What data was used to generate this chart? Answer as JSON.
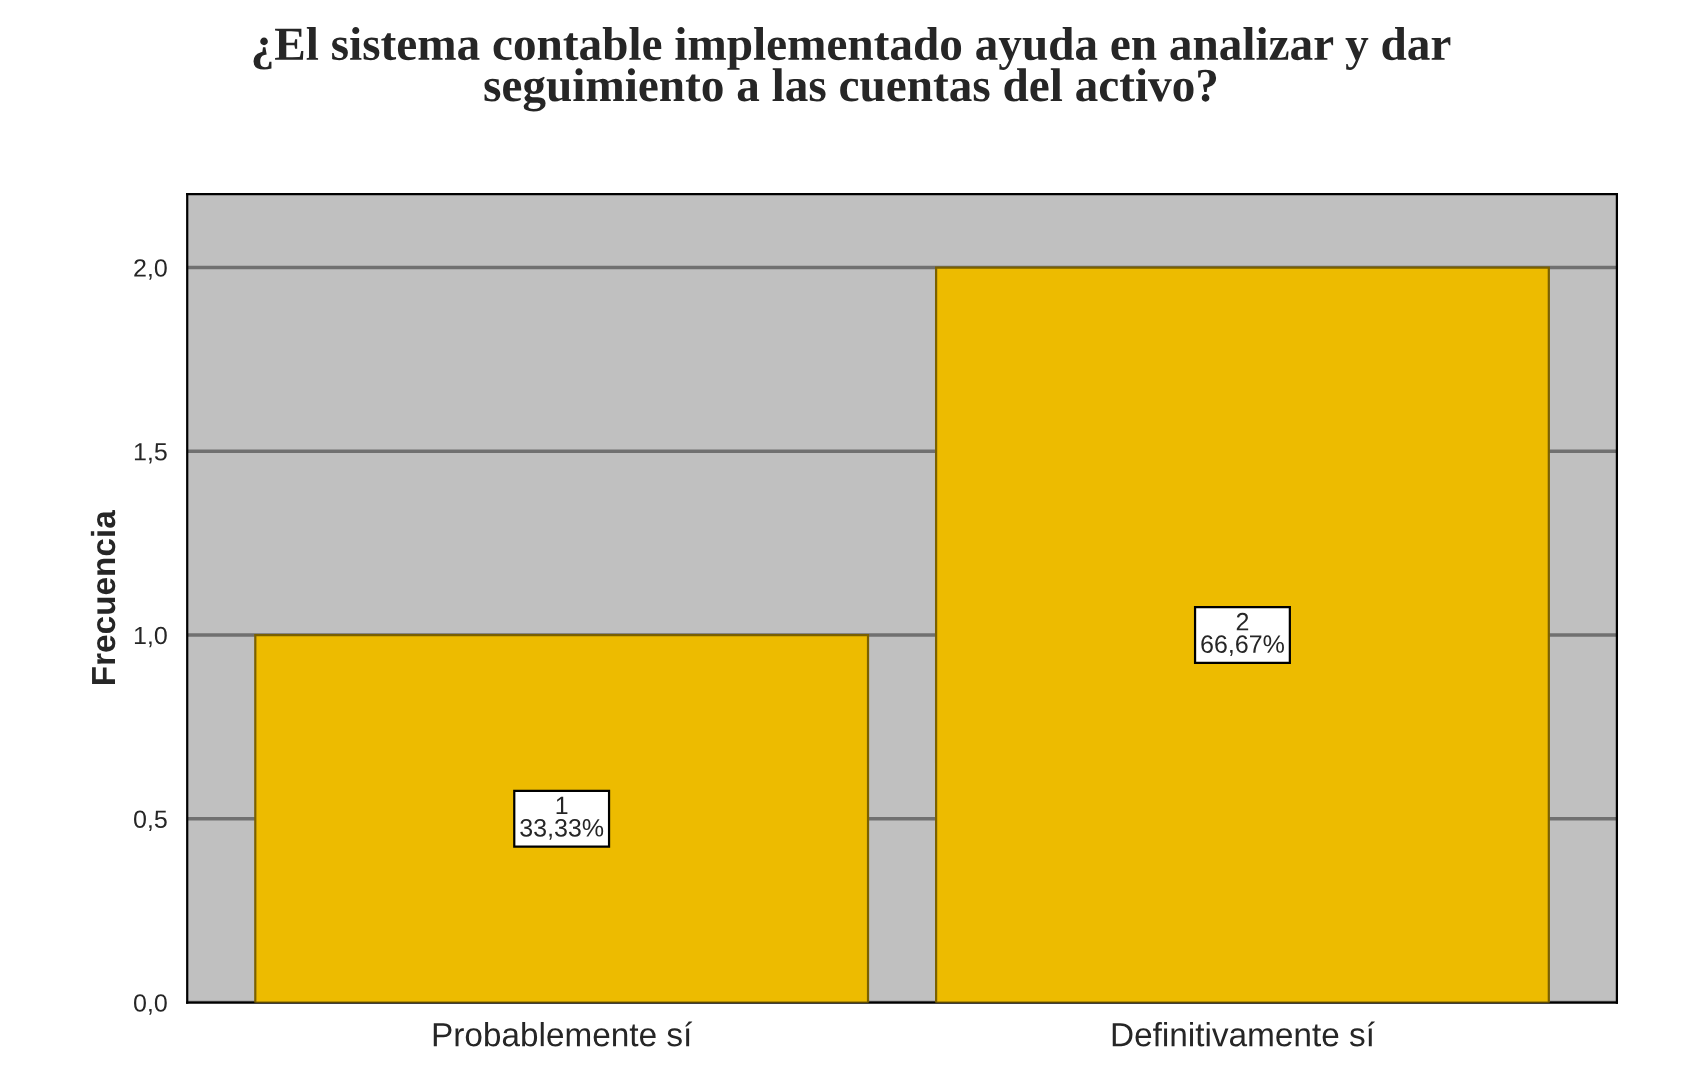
{
  "chart_data": {
    "type": "bar",
    "title": "¿El sistema contable implementado ayuda en analizar y dar\nseguimiento a las cuentas del activo?",
    "ylabel": "Frecuencia",
    "categories": [
      "Probablemente sí",
      "Definitivamente sí"
    ],
    "values": [
      1,
      2
    ],
    "color": "#edbb00",
    "value_labels": [
      "1\n33,33%",
      "2\n66,67%"
    ],
    "ylim": [
      0,
      2.2
    ],
    "yticks": [
      {
        "value": 0,
        "label": "0,0"
      },
      {
        "value": 0.5,
        "label": "0,5"
      },
      {
        "value": 1,
        "label": "1,0"
      },
      {
        "value": 1.5,
        "label": "1,5"
      },
      {
        "value": 2,
        "label": "2,0"
      }
    ],
    "grid": "y",
    "legend": false
  }
}
